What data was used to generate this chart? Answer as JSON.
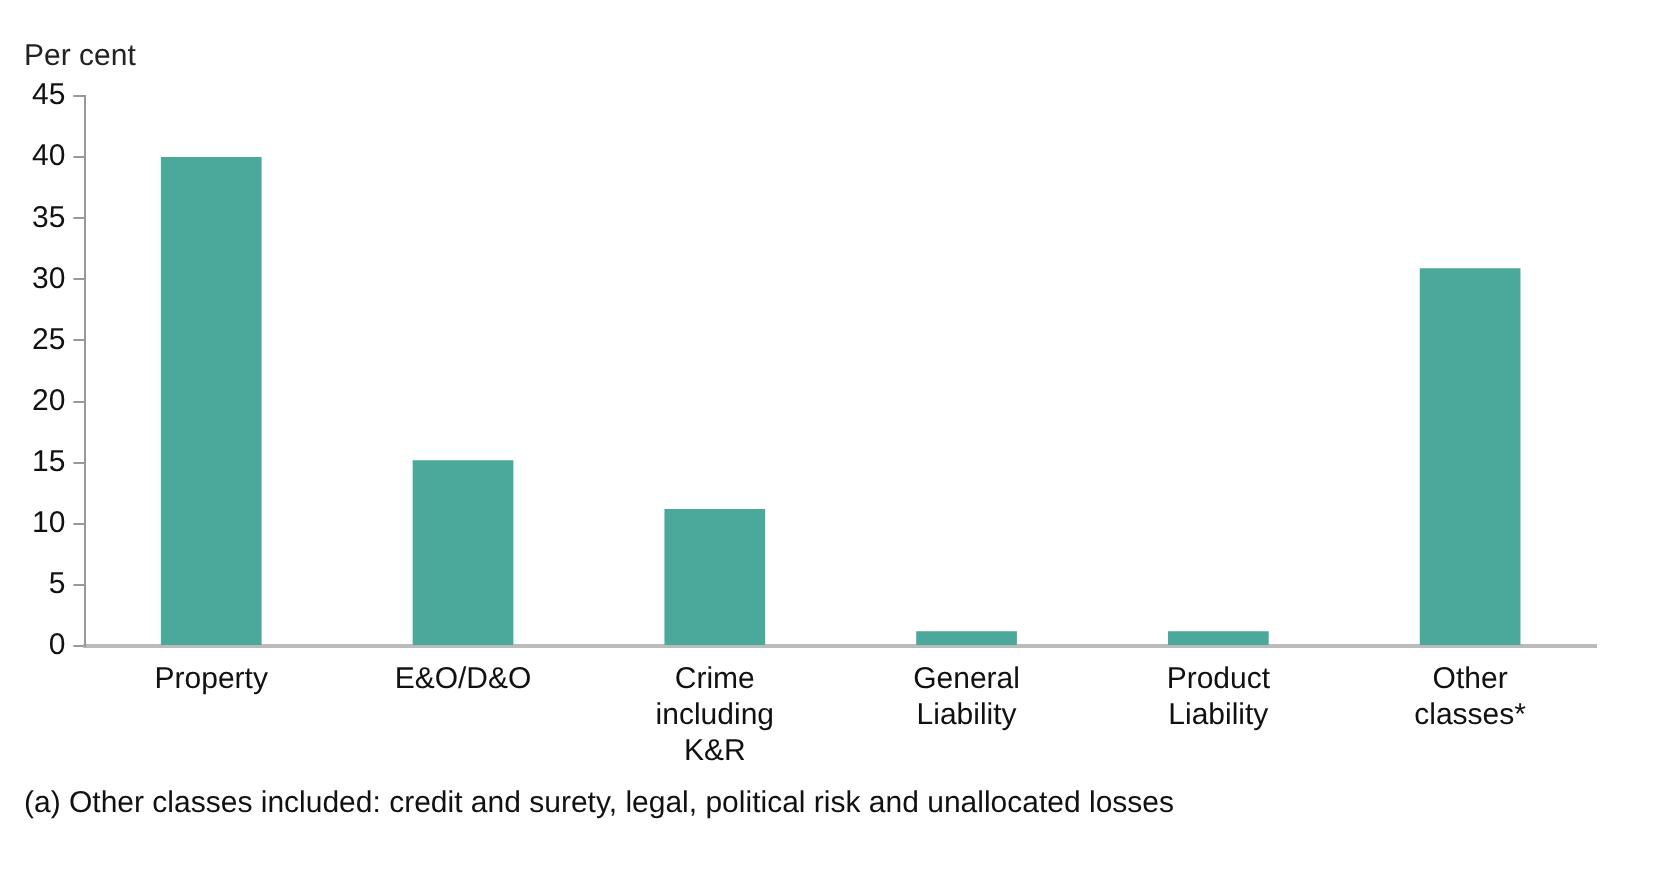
{
  "chart_data": {
    "type": "bar",
    "ylabel": "Per cent",
    "categories": [
      "Property",
      "E&O/D&O",
      "Crime including K&R",
      "General Liability",
      "Product Liability",
      "Other classes*"
    ],
    "values": [
      40,
      15.2,
      11.2,
      1.2,
      1.2,
      30.9
    ],
    "color": "#4aa99b",
    "ylim": [
      0,
      45
    ],
    "yticks": [
      0,
      5,
      10,
      15,
      20,
      25,
      30,
      35,
      40,
      45
    ],
    "grid": false,
    "annotations": [
      "(a) Other classes included: credit and surety, legal, political risk and unallocated losses"
    ]
  }
}
